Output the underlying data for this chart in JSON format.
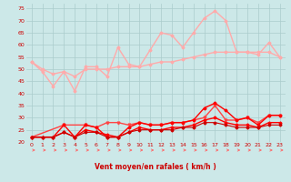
{
  "xlabel": "Vent moyen/en rafales ( km/h )",
  "background_color": "#cce8e8",
  "grid_color": "#aacccc",
  "xlim": [
    -0.5,
    23.5
  ],
  "ylim": [
    20,
    77
  ],
  "yticks": [
    20,
    25,
    30,
    35,
    40,
    45,
    50,
    55,
    60,
    65,
    70,
    75
  ],
  "xticks": [
    0,
    1,
    2,
    3,
    4,
    5,
    6,
    7,
    8,
    9,
    10,
    11,
    12,
    13,
    14,
    15,
    16,
    17,
    18,
    19,
    20,
    21,
    22,
    23
  ],
  "series": [
    {
      "x": [
        0,
        1,
        2,
        3,
        4,
        5,
        6,
        7,
        8,
        9,
        10,
        11,
        12,
        13,
        14,
        15,
        16,
        17,
        18,
        19,
        20,
        21,
        22,
        23
      ],
      "y": [
        53,
        49,
        43,
        49,
        41,
        51,
        51,
        47,
        59,
        52,
        51,
        58,
        65,
        64,
        59,
        65,
        71,
        74,
        70,
        57,
        57,
        56,
        61,
        55
      ],
      "color": "#ffaaaa",
      "lw": 1.0,
      "marker": "D",
      "ms": 1.5
    },
    {
      "x": [
        0,
        1,
        2,
        3,
        4,
        5,
        6,
        7,
        8,
        9,
        10,
        11,
        12,
        13,
        14,
        15,
        16,
        17,
        18,
        19,
        20,
        21,
        22,
        23
      ],
      "y": [
        53,
        50,
        48,
        49,
        47,
        50,
        50,
        50,
        51,
        51,
        51,
        52,
        53,
        53,
        54,
        55,
        56,
        57,
        57,
        57,
        57,
        57,
        57,
        55
      ],
      "color": "#ffaaaa",
      "lw": 1.0,
      "marker": "D",
      "ms": 1.5
    },
    {
      "x": [
        0,
        3,
        5,
        6,
        7,
        8,
        9,
        10,
        11,
        12,
        13,
        14,
        15,
        16,
        17,
        18,
        19,
        20,
        21,
        22,
        23
      ],
      "y": [
        22,
        27,
        27,
        26,
        28,
        28,
        27,
        28,
        27,
        27,
        28,
        28,
        29,
        30,
        35,
        29,
        29,
        30,
        28,
        31,
        31
      ],
      "color": "#ff4444",
      "lw": 1.0,
      "marker": "v",
      "ms": 2.0
    },
    {
      "x": [
        0,
        1,
        2,
        3,
        4,
        5,
        6,
        7,
        8,
        9,
        10,
        11,
        12,
        13,
        14,
        15,
        16,
        17,
        18,
        19,
        20,
        21,
        22,
        23
      ],
      "y": [
        22,
        22,
        22,
        27,
        22,
        27,
        26,
        22,
        22,
        26,
        28,
        27,
        27,
        28,
        28,
        29,
        34,
        36,
        33,
        29,
        30,
        27,
        31,
        31
      ],
      "color": "#ff0000",
      "lw": 1.0,
      "marker": "D",
      "ms": 1.5
    },
    {
      "x": [
        0,
        1,
        2,
        3,
        4,
        5,
        6,
        7,
        8,
        9,
        10,
        11,
        12,
        13,
        14,
        15,
        16,
        17,
        18,
        19,
        20,
        21,
        22,
        23
      ],
      "y": [
        22,
        22,
        22,
        24,
        22,
        25,
        24,
        23,
        22,
        24,
        26,
        25,
        25,
        26,
        26,
        27,
        29,
        30,
        28,
        27,
        27,
        26,
        28,
        28
      ],
      "color": "#ff0000",
      "lw": 1.0,
      "marker": "D",
      "ms": 1.5
    },
    {
      "x": [
        0,
        1,
        2,
        3,
        4,
        5,
        6,
        7,
        8,
        9,
        10,
        11,
        12,
        13,
        14,
        15,
        16,
        17,
        18,
        19,
        20,
        21,
        22,
        23
      ],
      "y": [
        22,
        22,
        22,
        24,
        22,
        24,
        24,
        22,
        22,
        24,
        25,
        25,
        25,
        25,
        26,
        26,
        28,
        28,
        27,
        26,
        26,
        26,
        27,
        27
      ],
      "color": "#cc0000",
      "lw": 0.8,
      "marker": "D",
      "ms": 1.5
    }
  ],
  "arrows_x": [
    0,
    1,
    2,
    3,
    4,
    5,
    6,
    7,
    8,
    9,
    10,
    11,
    12,
    13,
    14,
    15,
    16,
    17,
    18,
    19,
    20,
    21,
    22,
    23
  ]
}
